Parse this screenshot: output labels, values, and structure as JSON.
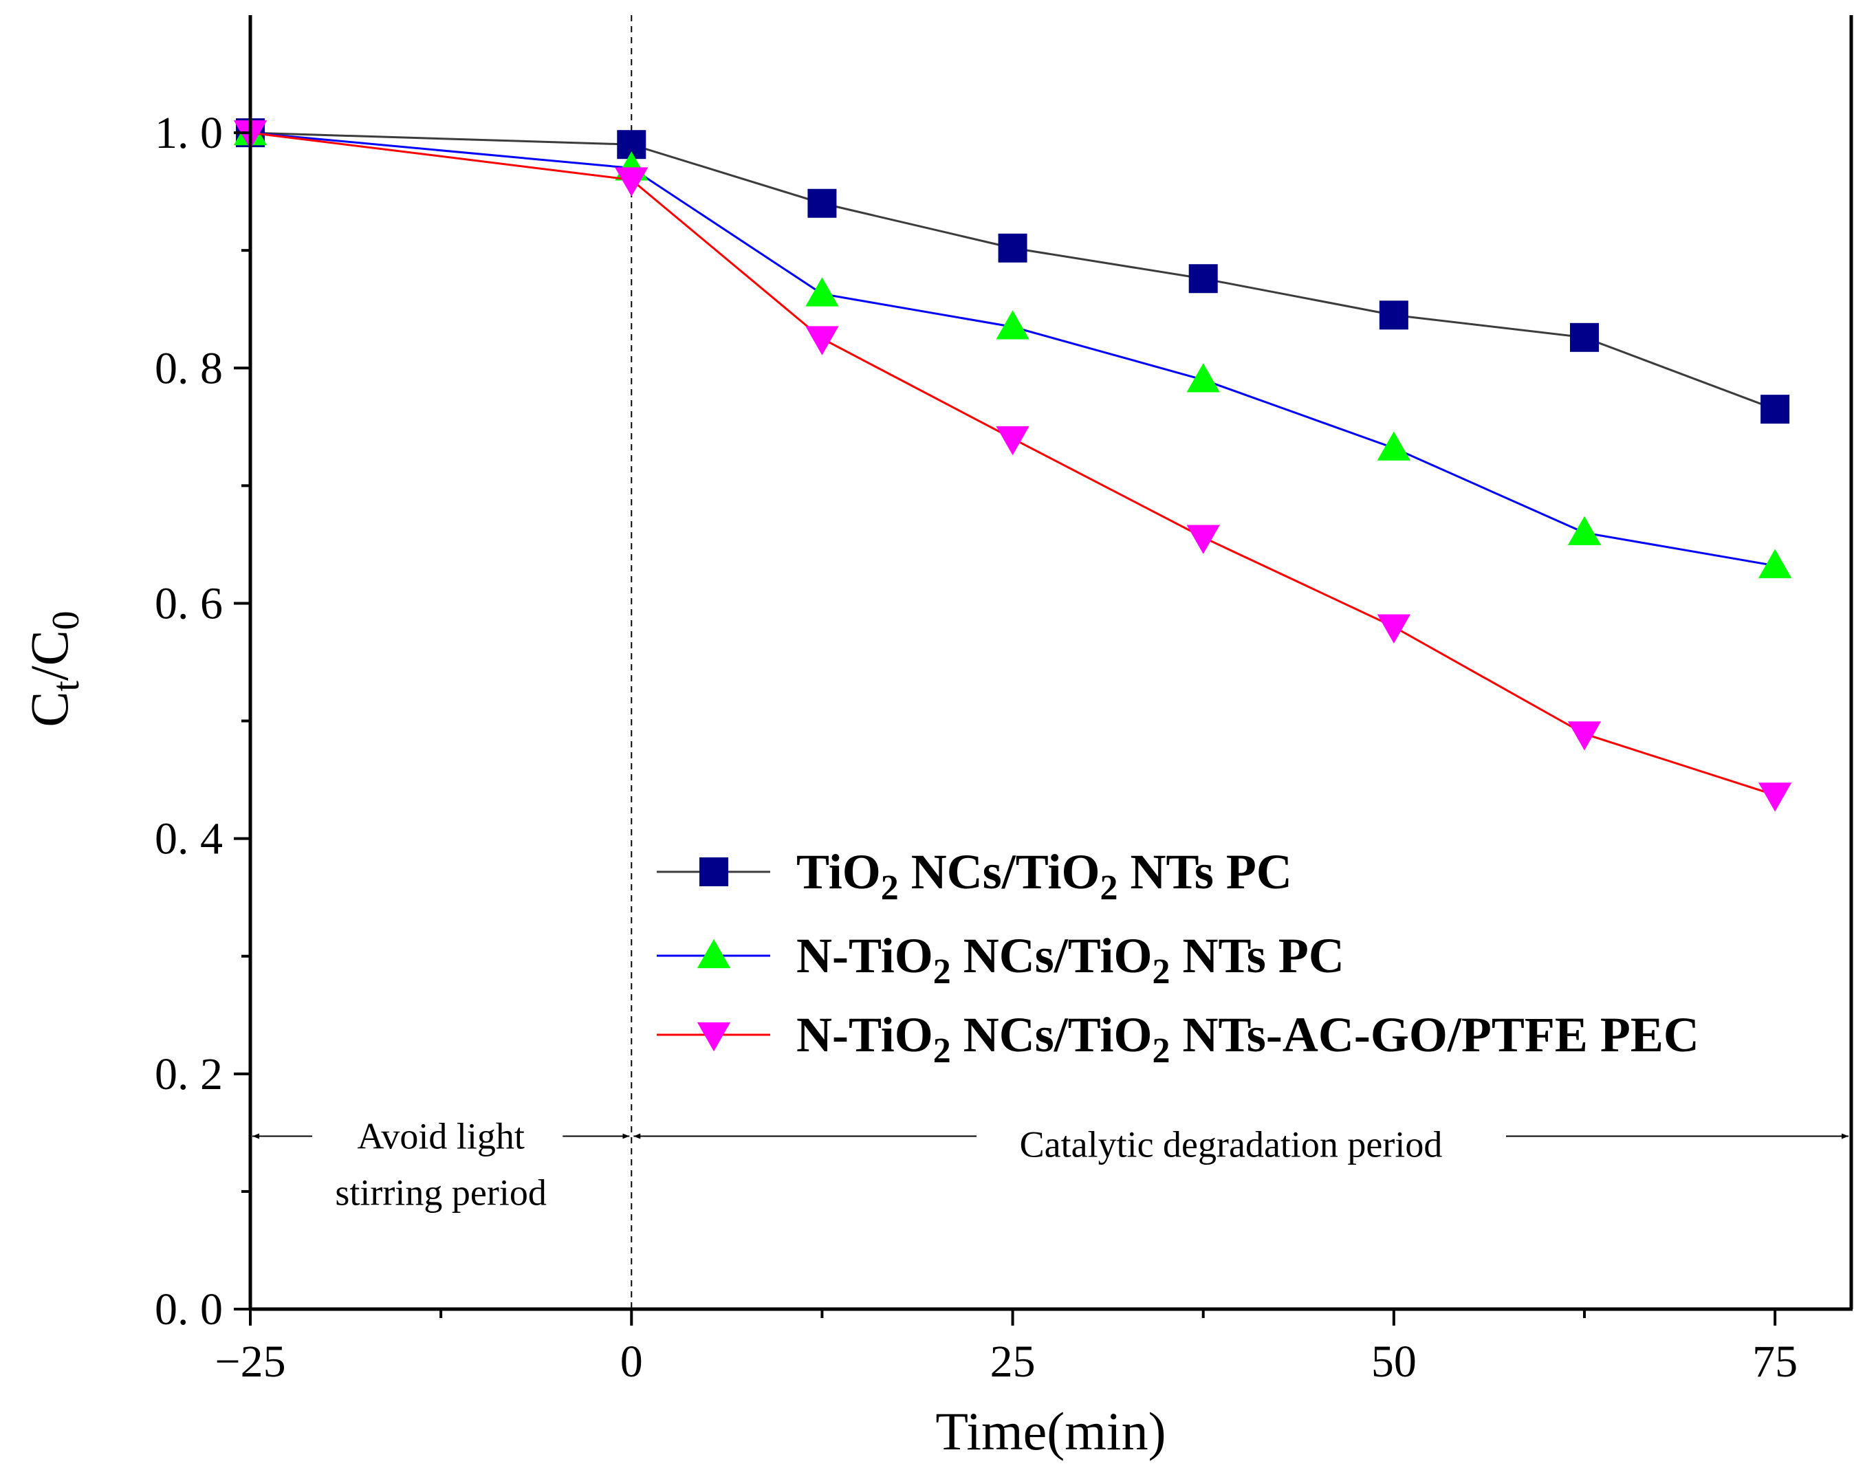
{
  "chart_data": {
    "type": "line",
    "xlabel": "Time(min)",
    "ylabel": {
      "main": "C",
      "sub1": "t",
      "mid": "/C",
      "sub2": "0"
    },
    "xlim": [
      -25,
      80
    ],
    "ylim": [
      0,
      1.1
    ],
    "x_ticks": [
      -25,
      0,
      25,
      50,
      75
    ],
    "x_tick_labels": [
      "−25",
      "0",
      "25",
      "50",
      "75"
    ],
    "x_minor_ticks": [
      -12.5,
      12.5,
      37.5,
      62.5
    ],
    "y_ticks": [
      0,
      0.2,
      0.4,
      0.6,
      0.8,
      1.0
    ],
    "y_tick_labels": [
      "0. 0",
      "0. 2",
      "0. 4",
      "0. 6",
      "0. 8",
      "1. 0"
    ],
    "y_minor_ticks": [
      0.1,
      0.3,
      0.5,
      0.7,
      0.9
    ],
    "grid": false,
    "legend_position": "bottom-right",
    "series": [
      {
        "name_parts": [
          "TiO",
          "2",
          " NCs/TiO",
          "2",
          " NTs PC"
        ],
        "line_color": "#3c3c3c",
        "marker": "square",
        "marker_color": "#00008b",
        "x": [
          -25,
          0,
          12.5,
          25,
          37.5,
          50,
          62.5,
          75
        ],
        "y": [
          1.0,
          0.99,
          0.94,
          0.902,
          0.876,
          0.845,
          0.826,
          0.765
        ]
      },
      {
        "name_parts": [
          "N-TiO",
          "2",
          " NCs/TiO",
          "2",
          " NTs PC"
        ],
        "line_color": "#0000ff",
        "marker": "triangle-up",
        "marker_color": "#00ff00",
        "x": [
          -25,
          0,
          12.5,
          25,
          37.5,
          50,
          62.5,
          75
        ],
        "y": [
          1.0,
          0.97,
          0.863,
          0.835,
          0.79,
          0.732,
          0.66,
          0.632
        ]
      },
      {
        "name_parts": [
          "N-TiO",
          "2",
          " NCs/TiO",
          "2",
          " NTs-AC-GO/PTFE PEC"
        ],
        "line_color": "#ff0000",
        "marker": "triangle-down",
        "marker_color": "#ff00ff",
        "x": [
          -25,
          0,
          12.5,
          25,
          37.5,
          50,
          62.5,
          75
        ],
        "y": [
          1.0,
          0.96,
          0.825,
          0.74,
          0.656,
          0.58,
          0.489,
          0.437
        ]
      }
    ],
    "vline_x": 0,
    "annotations": [
      {
        "lines": [
          "Avoid light",
          "stirring period"
        ],
        "x_from": -25,
        "x_to": 0,
        "y": 0.147
      },
      {
        "lines": [
          "Catalytic degradation period"
        ],
        "x_from": 0,
        "x_to": 80,
        "y": 0.147
      }
    ]
  }
}
